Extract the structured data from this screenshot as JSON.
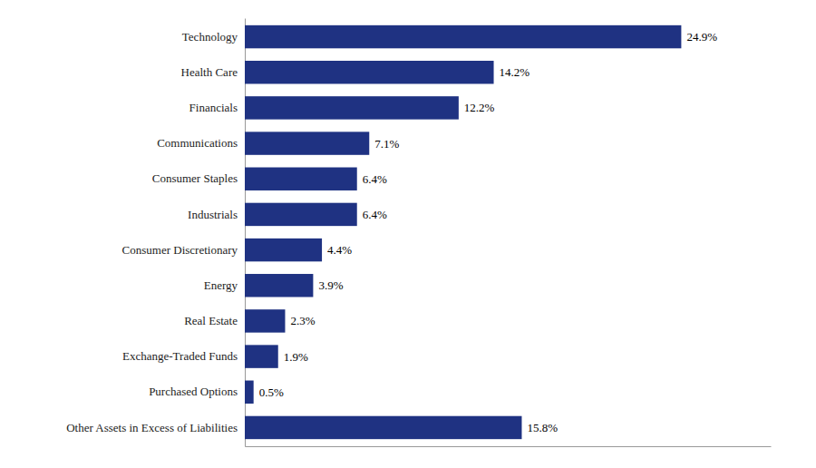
{
  "chart_data": {
    "type": "bar",
    "orientation": "horizontal",
    "categories": [
      "Technology",
      "Health Care",
      "Financials",
      "Communications",
      "Consumer Staples",
      "Industrials",
      "Consumer Discretionary",
      "Energy",
      "Real Estate",
      "Exchange-Traded Funds",
      "Purchased Options",
      "Other Assets in Excess of Liabilities"
    ],
    "values": [
      24.9,
      14.2,
      12.2,
      7.1,
      6.4,
      6.4,
      4.4,
      3.9,
      2.3,
      1.9,
      0.5,
      15.8
    ],
    "value_labels": [
      "24.9%",
      "14.2%",
      "12.2%",
      "7.1%",
      "6.4%",
      "6.4%",
      "4.4%",
      "3.9%",
      "2.3%",
      "1.9%",
      "0.5%",
      "15.8%"
    ],
    "color": "#1F3282",
    "xlim": [
      0,
      30
    ],
    "data_labels": true,
    "tick_labels": "y"
  }
}
